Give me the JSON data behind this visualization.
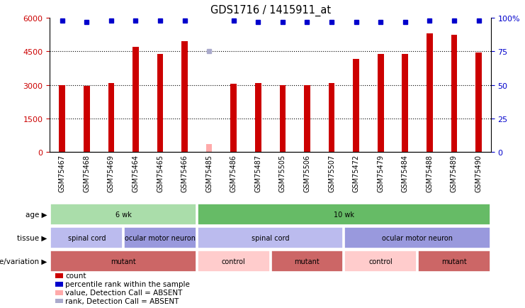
{
  "title": "GDS1716 / 1415911_at",
  "samples": [
    "GSM75467",
    "GSM75468",
    "GSM75469",
    "GSM75464",
    "GSM75465",
    "GSM75466",
    "GSM75485",
    "GSM75486",
    "GSM75487",
    "GSM75505",
    "GSM75506",
    "GSM75507",
    "GSM75472",
    "GSM75479",
    "GSM75484",
    "GSM75488",
    "GSM75489",
    "GSM75490"
  ],
  "counts": [
    3000,
    2950,
    3100,
    4700,
    4400,
    4950,
    350,
    3050,
    3100,
    2980,
    3000,
    3080,
    4150,
    4400,
    4400,
    5300,
    5250,
    4450
  ],
  "absent": [
    false,
    false,
    false,
    false,
    false,
    false,
    true,
    false,
    false,
    false,
    false,
    false,
    false,
    false,
    false,
    false,
    false,
    false
  ],
  "percentile_ranks": [
    98,
    97,
    98,
    98,
    98,
    98,
    75,
    98,
    97,
    97,
    97,
    97,
    97,
    97,
    97,
    98,
    98,
    98
  ],
  "absent_rank": [
    false,
    false,
    false,
    false,
    false,
    false,
    true,
    false,
    false,
    false,
    false,
    false,
    false,
    false,
    false,
    false,
    false,
    false
  ],
  "ylim": [
    0,
    6000
  ],
  "yticks_left": [
    0,
    1500,
    3000,
    4500,
    6000
  ],
  "yticks_right": [
    0,
    25,
    50,
    75,
    100
  ],
  "bar_color_normal": "#cc0000",
  "bar_color_absent": "#ffaaaa",
  "dot_color_normal": "#0000cc",
  "dot_color_absent": "#aaaacc",
  "age_row": {
    "groups": [
      {
        "label": "6 wk",
        "start": 0,
        "end": 6,
        "color": "#aaddaa"
      },
      {
        "label": "10 wk",
        "start": 6,
        "end": 18,
        "color": "#66bb66"
      }
    ]
  },
  "tissue_row": {
    "groups": [
      {
        "label": "spinal cord",
        "start": 0,
        "end": 3,
        "color": "#bbbbee"
      },
      {
        "label": "ocular motor neuron",
        "start": 3,
        "end": 6,
        "color": "#9999dd"
      },
      {
        "label": "spinal cord",
        "start": 6,
        "end": 12,
        "color": "#bbbbee"
      },
      {
        "label": "ocular motor neuron",
        "start": 12,
        "end": 18,
        "color": "#9999dd"
      }
    ]
  },
  "genotype_row": {
    "groups": [
      {
        "label": "mutant",
        "start": 0,
        "end": 6,
        "color": "#cc6666"
      },
      {
        "label": "control",
        "start": 6,
        "end": 9,
        "color": "#ffcccc"
      },
      {
        "label": "mutant",
        "start": 9,
        "end": 12,
        "color": "#cc6666"
      },
      {
        "label": "control",
        "start": 12,
        "end": 15,
        "color": "#ffcccc"
      },
      {
        "label": "mutant",
        "start": 15,
        "end": 18,
        "color": "#cc6666"
      }
    ]
  },
  "row_labels": [
    "age",
    "tissue",
    "genotype/variation"
  ],
  "legend_items": [
    {
      "label": "count",
      "color": "#cc0000"
    },
    {
      "label": "percentile rank within the sample",
      "color": "#0000cc"
    },
    {
      "label": "value, Detection Call = ABSENT",
      "color": "#ffaaaa"
    },
    {
      "label": "rank, Detection Call = ABSENT",
      "color": "#aaaacc"
    }
  ],
  "fig_width": 7.41,
  "fig_height": 4.35,
  "dpi": 100
}
